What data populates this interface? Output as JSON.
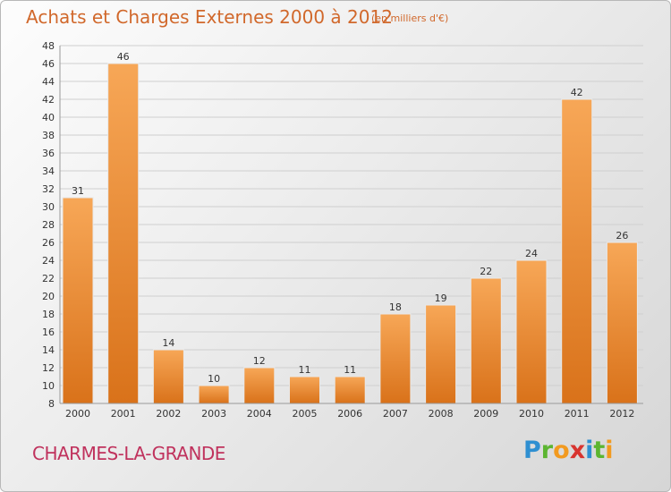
{
  "title": "Achats et Charges Externes 2000 à 2012",
  "unit": "(en milliers d'€)",
  "place": "CHARMES-LA-GRANDE",
  "logo": {
    "text": "Proxiti",
    "letters": [
      {
        "ch": "P",
        "color": "#2e8fd1"
      },
      {
        "ch": "r",
        "color": "#5cb531"
      },
      {
        "ch": "o",
        "color": "#f29a1f"
      },
      {
        "ch": "x",
        "color": "#d8342f"
      },
      {
        "ch": "i",
        "color": "#2e8fd1"
      },
      {
        "ch": "t",
        "color": "#5cb531"
      },
      {
        "ch": "i",
        "color": "#f29a1f"
      }
    ]
  },
  "chart_data": {
    "type": "bar",
    "categories": [
      "2000",
      "2001",
      "2002",
      "2003",
      "2004",
      "2005",
      "2006",
      "2007",
      "2008",
      "2009",
      "2010",
      "2011",
      "2012"
    ],
    "values": [
      31,
      46,
      14,
      10,
      12,
      11,
      11,
      18,
      19,
      22,
      24,
      42,
      26
    ],
    "ylim": [
      8,
      48
    ],
    "yticks": [
      8,
      10,
      12,
      14,
      16,
      18,
      20,
      22,
      24,
      26,
      28,
      30,
      32,
      34,
      36,
      38,
      40,
      42,
      44,
      46,
      48
    ],
    "grid": true,
    "colors": {
      "bar_light": "#f7a757",
      "bar_dark": "#d9721a",
      "grid": "#cfcfcf"
    }
  }
}
